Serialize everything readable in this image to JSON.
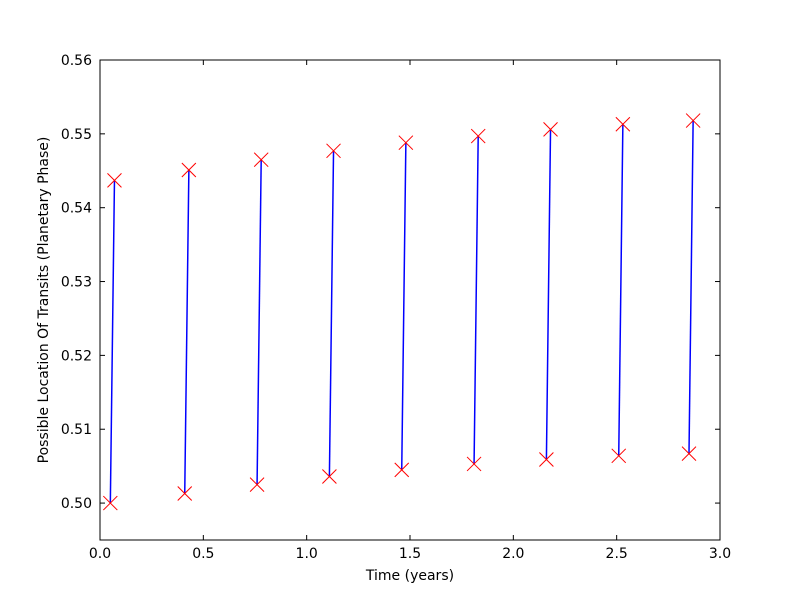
{
  "chart_data": {
    "type": "scatter",
    "title": "",
    "xlabel": "Time (years)",
    "ylabel": "Possible Location Of Transits (Planetary Phase)",
    "xlim": [
      0.0,
      3.0
    ],
    "ylim": [
      0.495,
      0.56
    ],
    "x_ticks": [
      "0.0",
      "0.5",
      "1.0",
      "1.5",
      "2.0",
      "2.5",
      "3.0"
    ],
    "y_ticks": [
      "0.50",
      "0.51",
      "0.52",
      "0.53",
      "0.54",
      "0.55",
      "0.56"
    ],
    "grid": false,
    "legend": "none",
    "marker": "x",
    "marker_color": "#ff0000",
    "line_color": "#0000ff",
    "segments": [
      {
        "x0": 0.05,
        "y0": 0.5,
        "x1": 0.07,
        "y1": 0.5437
      },
      {
        "x0": 0.41,
        "y0": 0.5013,
        "x1": 0.43,
        "y1": 0.5451
      },
      {
        "x0": 0.76,
        "y0": 0.5025,
        "x1": 0.78,
        "y1": 0.5465
      },
      {
        "x0": 1.11,
        "y0": 0.5036,
        "x1": 1.13,
        "y1": 0.5477
      },
      {
        "x0": 1.46,
        "y0": 0.5045,
        "x1": 1.48,
        "y1": 0.5488
      },
      {
        "x0": 1.81,
        "y0": 0.5053,
        "x1": 1.83,
        "y1": 0.5497
      },
      {
        "x0": 2.16,
        "y0": 0.5059,
        "x1": 2.18,
        "y1": 0.5506
      },
      {
        "x0": 2.51,
        "y0": 0.5064,
        "x1": 2.53,
        "y1": 0.5513
      },
      {
        "x0": 2.85,
        "y0": 0.5067,
        "x1": 2.87,
        "y1": 0.5518
      }
    ]
  }
}
